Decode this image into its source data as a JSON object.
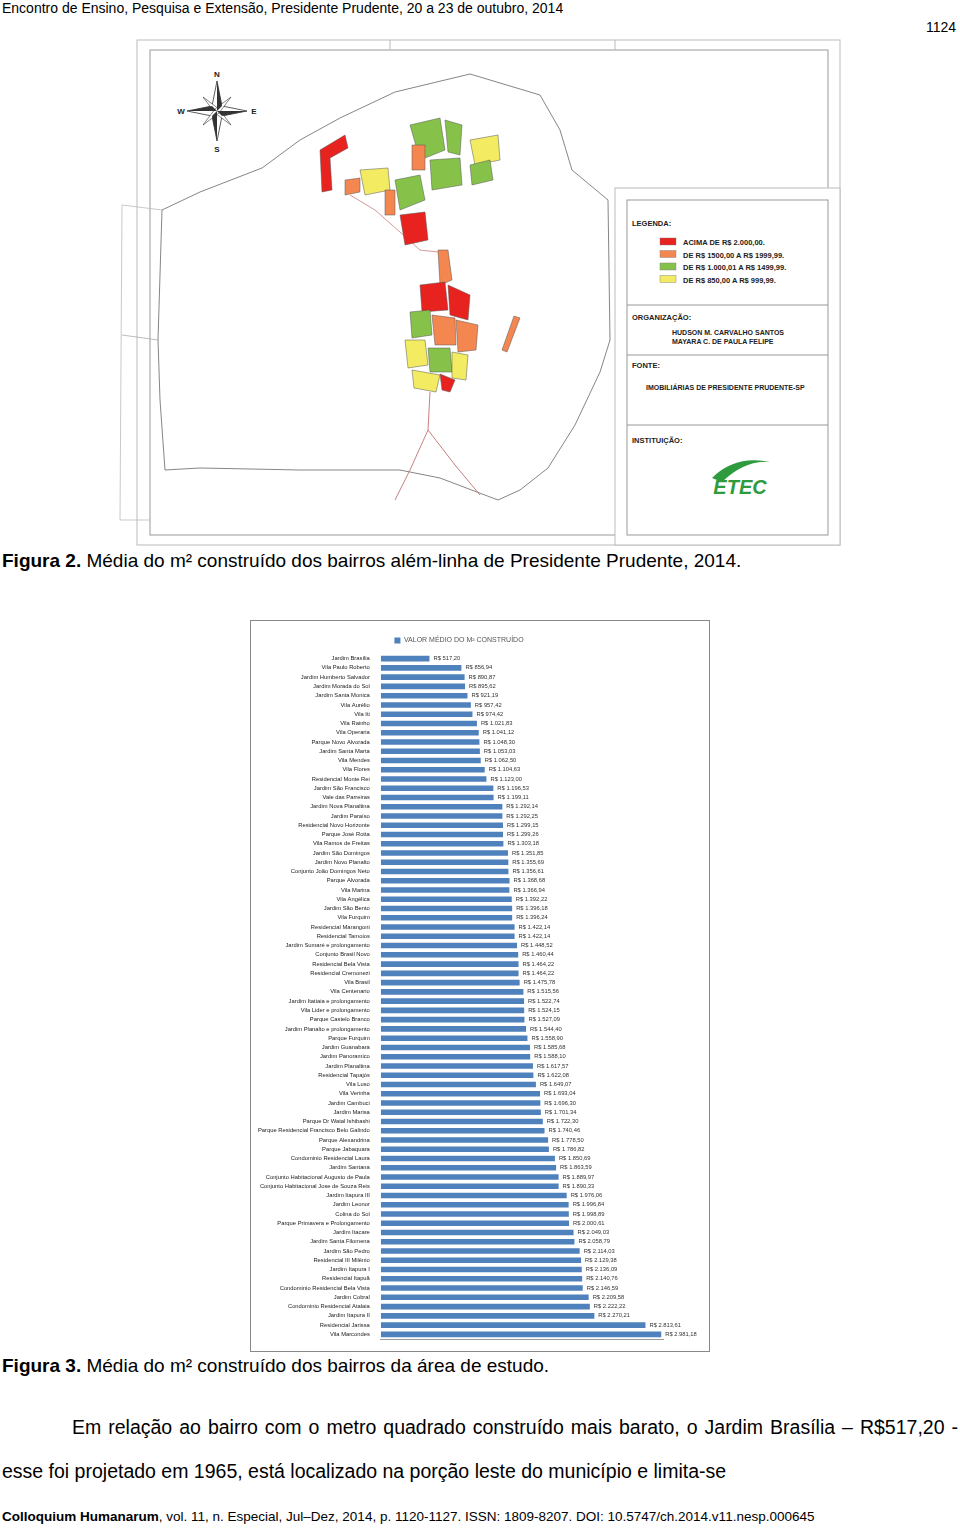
{
  "header": {
    "text": "Encontro de Ensino, Pesquisa e Extensão, Presidente Prudente, 20 a 23 de outubro, 2014",
    "page_number": "1124"
  },
  "figure_2": {
    "caption_label": "Figura 2.",
    "caption": "Média do m² construído dos bairros além-linha de Presidente Prudente, 2014.",
    "map": {
      "compass": {
        "north": "N",
        "south": "S",
        "west": "W",
        "east": "E"
      },
      "legend_title": "LEGENDA:",
      "legend": [
        {
          "label": "ACIMA DE R$ 2.000,00.",
          "color": "#e8231f"
        },
        {
          "label": "DE R$ 1500,00 A R$ 1999,99.",
          "color": "#f4874f"
        },
        {
          "label": "DE R$ 1.000,01 A R$ 1499,99.",
          "color": "#86c24a"
        },
        {
          "label": "DE R$ 850,00 A R$ 999,99.",
          "color": "#f3ec62"
        }
      ],
      "organization_title": "ORGANIZAÇÃO:",
      "organization": [
        "HUDSON M. CARVALHO SANTOS",
        "MAYARA C. DE PAULA FELIPE"
      ],
      "source_title": "FONTE:",
      "source": "IMOBILIÁRIAS DE PRESIDENTE PRUDENTE-SP",
      "institution_title": "INSTITUIÇÃO:",
      "institution_logo": "ETEC"
    }
  },
  "figure_3": {
    "caption_label": "Figura 3.",
    "caption": "Média do m² construído dos bairros da área de estudo."
  },
  "chart_data": {
    "type": "bar",
    "orientation": "horizontal",
    "legend": "top",
    "grid": false,
    "data_labels": true,
    "tick_labels": "y",
    "xlim": [
      0,
      3000
    ],
    "categories": [
      "Jardim Brasília",
      "Vila Paulo Roberto",
      "Jardim Humberto Salvador",
      "Jardim Morada do Sol",
      "Jardim Santa Monica",
      "Vila Aurélio",
      "Vila Iti",
      "Vila Rainho",
      "Vila Operaria",
      "Parque Novo Alvorada",
      "Jardim Santa Marta",
      "Vila Mendes",
      "Vila Flores",
      "Residencial Monte Rei",
      "Jardim São Francisco",
      "Vale das Parreiras",
      "Jardim Nova Planaltina",
      "Jardim Paraíso",
      "Residencial Novo Horizonte",
      "Parque José Rotta",
      "Vila Ramos de Freitas",
      "Jardim São Domingos",
      "Jardim Novo Planalto",
      "Conjunto João Domingos Neto",
      "Parque Alvorada",
      "Vila Marina",
      "Vila Angélica",
      "Jardim São Bento",
      "Vila Furquim",
      "Residencial Marangoni",
      "Residencial Tamoios",
      "Jardim Sumaré e prolongamento",
      "Conjunto Brasil Novo",
      "Residencial Bela Vista",
      "Residencial Cremonezi",
      "Vila Brasil",
      "Vila Centenario",
      "Jardim Itatiaia e prolongamento",
      "Vila Lider e prolongamento",
      "Parque Castelo Branco",
      "Jardim Planalto e prolongamento",
      "Parque Furquim",
      "Jardim Guanabara",
      "Jardim Panoramico",
      "Jardim Planaltina",
      "Residencial Tapajós",
      "Vila Luso",
      "Vila Verinha",
      "Jardim Cambuci",
      "Jardim Marisa",
      "Parque Dr Watal Ishibashi",
      "Parque Residencial Francisco Belo Galindo",
      "Parque Alexandrina",
      "Parque Jabaquara",
      "Condominio Residencial Laura",
      "Jardim Santana",
      "Conjunto Habitacional Augusto de Paula",
      "Conjunto Habitacional Jose de Souza Reis",
      "Jardim Itapura III",
      "Jardim Leonor",
      "Colina do Sol",
      "Parque Primavera e Prolongamento",
      "Jardim Itacare",
      "Jardim Santa Filomena",
      "Jardim São Pedro",
      "Residencial III Milênio",
      "Jardim Itapura I",
      "Residencial Itapuã",
      "Condominio Residencial Bela Vista",
      "Jardim Cobral",
      "Condominio Residencial Atalaia",
      "Jardim Itapura II",
      "Residencial Jarissa",
      "Vila Marcondes"
    ],
    "series": [
      {
        "name": "VALOR MÉDIO DO M² CONSTRUÍDO",
        "color": "#4f81bd",
        "values": [
          517.2,
          856.94,
          890.87,
          895.62,
          921.19,
          957.42,
          974.42,
          1021.83,
          1041.12,
          1048.3,
          1053.03,
          1062.5,
          1104.63,
          1123.0,
          1196.53,
          1199.11,
          1292.14,
          1292.25,
          1299.15,
          1299.26,
          1303.18,
          1351.85,
          1355.69,
          1356.61,
          1368.68,
          1366.94,
          1392.22,
          1396.18,
          1396.24,
          1422.14,
          1422.14,
          1448.52,
          1460.44,
          1464.22,
          1464.22,
          1475.78,
          1515.56,
          1522.74,
          1524.15,
          1527.09,
          1544.4,
          1558.9,
          1585.68,
          1588.1,
          1617.57,
          1622.08,
          1649.07,
          1693.04,
          1696.3,
          1701.34,
          1722.3,
          1740.46,
          1778.5,
          1786.82,
          1850.69,
          1863.59,
          1889.97,
          1890.33,
          1976.06,
          1996.84,
          1998.89,
          2000.61,
          2049.03,
          2058.79,
          2114.03,
          2129.38,
          2136.09,
          2140.76,
          2146.59,
          2209.58,
          2222.22,
          2270.21,
          2813.61,
          2981.18
        ],
        "value_labels": [
          "R$ 517,20",
          "R$ 856,94",
          "R$ 890,87",
          "R$ 895,62",
          "R$ 921,19",
          "R$ 957,42",
          "R$ 974,42",
          "R$ 1.021,83",
          "R$ 1.041,12",
          "R$ 1.048,30",
          "R$ 1.053,03",
          "R$ 1.062,50",
          "R$ 1.104,63",
          "R$ 1.123,00",
          "R$ 1.196,53",
          "R$ 1.199,11",
          "R$ 1.292,14",
          "R$ 1.292,25",
          "R$ 1.299,15",
          "R$ 1.299,26",
          "R$ 1.303,18",
          "R$ 1.351,85",
          "R$ 1.355,69",
          "R$ 1.356,61",
          "R$ 1.368,68",
          "R$ 1.366,94",
          "R$ 1.392,22",
          "R$ 1.396,18",
          "R$ 1.396,24",
          "R$ 1.422,14",
          "R$ 1.422,14",
          "R$ 1.448,52",
          "R$ 1.460,44",
          "R$ 1.464,22",
          "R$ 1.464,22",
          "R$ 1.475,78",
          "R$ 1.515,56",
          "R$ 1.522,74",
          "R$ 1.524,15",
          "R$ 1.527,09",
          "R$ 1.544,40",
          "R$ 1.558,90",
          "R$ 1.585,68",
          "R$ 1.588,10",
          "R$ 1.617,57",
          "R$ 1.622,08",
          "R$ 1.649,07",
          "R$ 1.693,04",
          "R$ 1.696,30",
          "R$ 1.701,34",
          "R$ 1.722,30",
          "R$ 1.740,46",
          "R$ 1.778,50",
          "R$ 1.786,82",
          "R$ 1.850,69",
          "R$ 1.863,59",
          "R$ 1.889,97",
          "R$ 1.890,33",
          "R$ 1.976,06",
          "R$ 1.996,84",
          "R$ 1.998,89",
          "R$ 2.000,61",
          "R$ 2.049,03",
          "R$ 2.058,79",
          "R$ 2.114,03",
          "R$ 2.129,38",
          "R$ 2.136,09",
          "R$ 2.140,76",
          "R$ 2.146,59",
          "R$ 2.209,58",
          "R$ 2.222,22",
          "R$ 2.270,21",
          "R$ 2.813,61",
          "R$ 2.981,18"
        ]
      }
    ]
  },
  "body": {
    "paragraph": "Em relação ao bairro com o metro quadrado construído mais barato, o Jardim Brasília – R$517,20 - esse foi projetado em 1965, está localizado na porção leste do município e limita-se"
  },
  "footer": {
    "journal": "Colloquium Humanarum",
    "details": ", vol. 11, n. Especial, Jul–Dez, 2014, p. 1120-1127. ISSN: 1809-8207. DOI: 10.5747/ch.2014.v11.nesp.000645"
  }
}
